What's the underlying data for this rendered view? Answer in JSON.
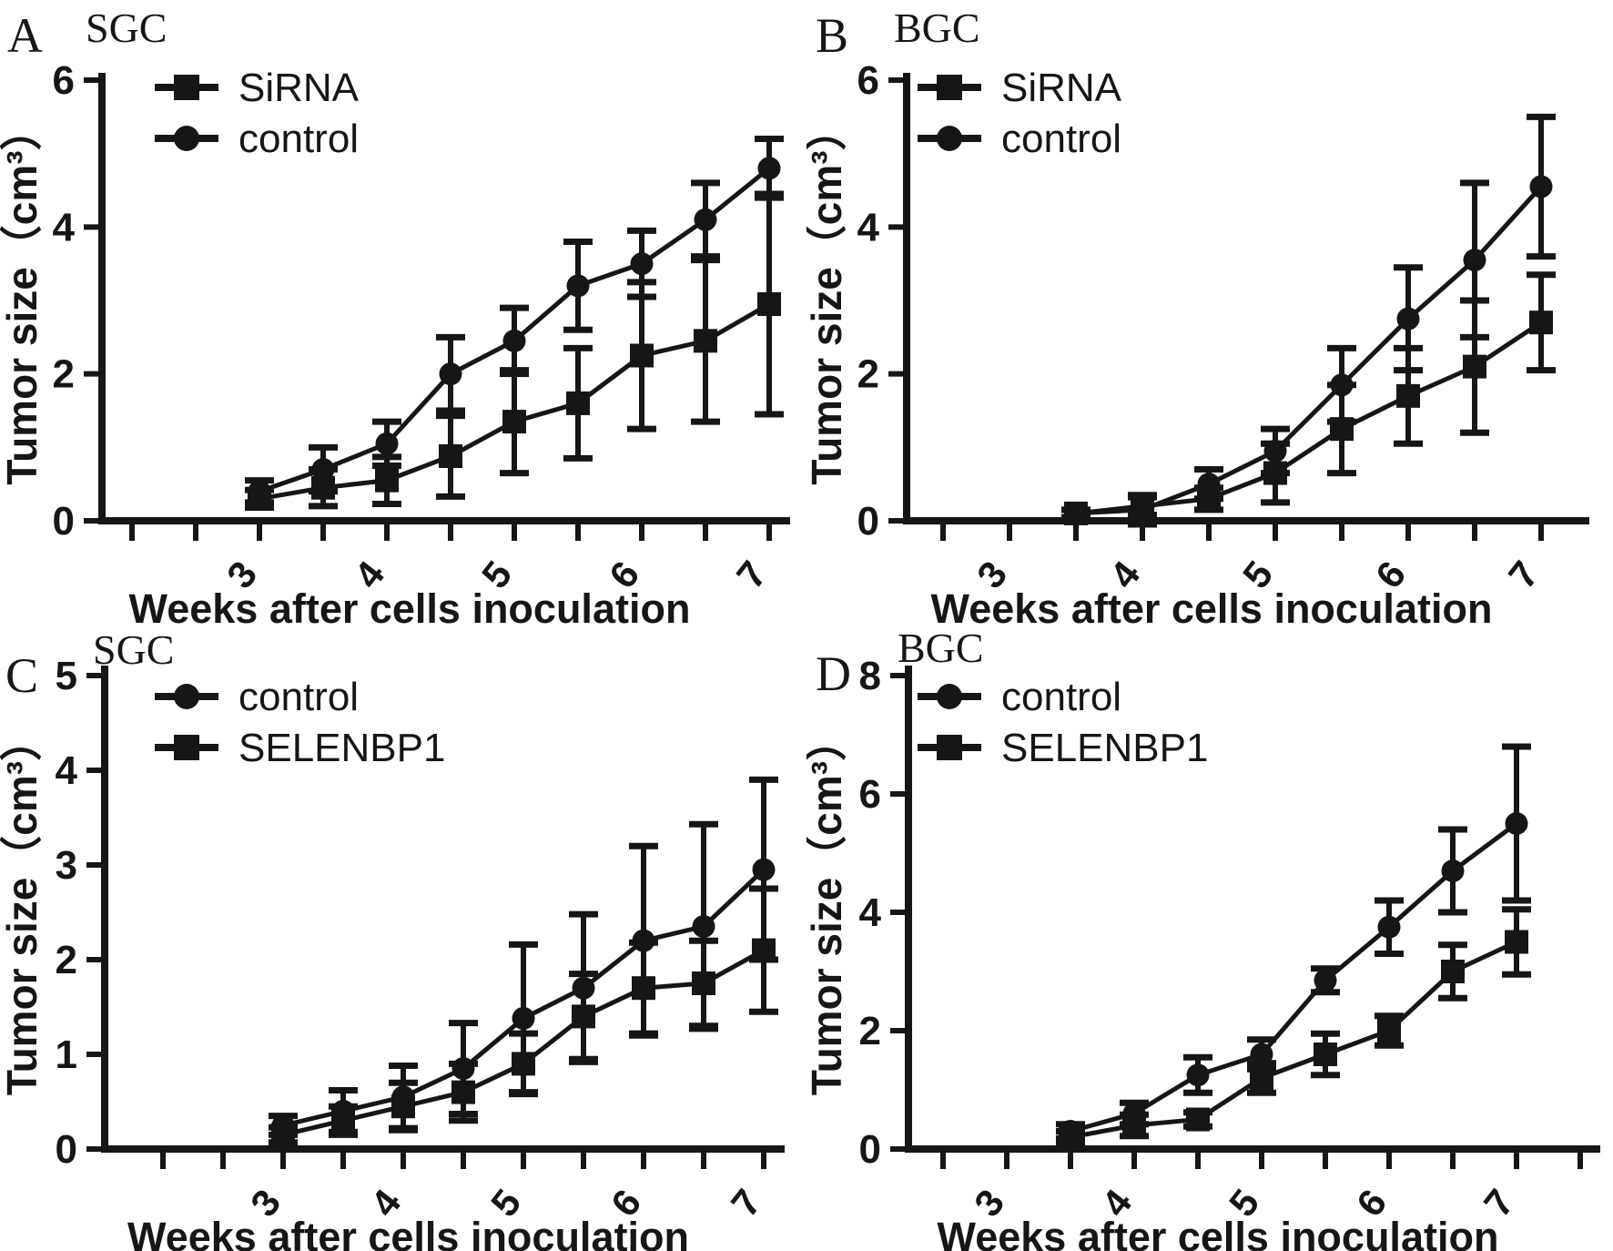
{
  "figure": {
    "background": "#ffffff",
    "ink_color": "#161616"
  },
  "chart_data": [
    {
      "panel_letter": "A",
      "title": "SGC",
      "type": "line",
      "x_label": "Weeks after cells inoculation",
      "y_label": "Tumor size（cm³）",
      "x": [
        3,
        3.5,
        4,
        4.5,
        5,
        5.5,
        6,
        6.5,
        7
      ],
      "x_axis": {
        "tick_start": 2,
        "tick_end": 7,
        "tick_step": 0.5,
        "labeled_ticks": [
          3,
          4,
          5,
          6,
          7
        ]
      },
      "y_axis": {
        "ticks": [
          0,
          2,
          4,
          6
        ],
        "min": 0,
        "max": 6
      },
      "grid": false,
      "legend_position": "top-left",
      "series": [
        {
          "name": "SiRNA",
          "marker": "square",
          "values": [
            0.3,
            0.45,
            0.55,
            0.88,
            1.35,
            1.6,
            2.25,
            2.45,
            2.95
          ],
          "errors": [
            0.12,
            0.25,
            0.32,
            0.55,
            0.7,
            0.75,
            1.0,
            1.1,
            1.5
          ]
        },
        {
          "name": "control",
          "marker": "circle",
          "values": [
            0.4,
            0.7,
            1.05,
            2.0,
            2.45,
            3.2,
            3.5,
            4.1,
            4.8
          ],
          "errors": [
            0.15,
            0.3,
            0.3,
            0.5,
            0.45,
            0.6,
            0.45,
            0.5,
            0.4
          ]
        }
      ]
    },
    {
      "panel_letter": "B",
      "title": "BGC",
      "type": "line",
      "x_label": "Weeks after cells inoculation",
      "y_label": "Tumor size（cm³）",
      "x": [
        3.5,
        4,
        4.5,
        5,
        5.5,
        6,
        6.5,
        7
      ],
      "x_axis": {
        "tick_start": 2.5,
        "tick_end": 7,
        "tick_step": 0.5,
        "labeled_ticks": [
          3,
          4,
          5,
          6,
          7
        ]
      },
      "y_axis": {
        "ticks": [
          0,
          2,
          4,
          6
        ],
        "min": 0,
        "max": 6
      },
      "grid": false,
      "legend_position": "top-left",
      "series": [
        {
          "name": "SiRNA",
          "marker": "square",
          "values": [
            0.1,
            0.2,
            0.3,
            0.65,
            1.25,
            1.7,
            2.1,
            2.7
          ],
          "errors": [
            0.05,
            0.12,
            0.15,
            0.4,
            0.6,
            0.65,
            0.9,
            0.65
          ]
        },
        {
          "name": "control",
          "marker": "circle",
          "values": [
            0.1,
            0.15,
            0.5,
            0.95,
            1.85,
            2.75,
            3.55,
            4.55
          ],
          "errors": [
            0.05,
            0.2,
            0.2,
            0.3,
            0.5,
            0.7,
            1.05,
            0.95
          ]
        }
      ]
    },
    {
      "panel_letter": "C",
      "title": "SGC",
      "type": "line",
      "x_label": "Weeks after cells inoculation",
      "y_label": "Tumor size（cm³）",
      "x": [
        3,
        3.5,
        4,
        4.5,
        5,
        5.5,
        6,
        6.5,
        7
      ],
      "x_axis": {
        "tick_start": 2,
        "tick_end": 7,
        "tick_step": 0.5,
        "labeled_ticks": [
          3,
          4,
          5,
          6,
          7
        ]
      },
      "y_axis": {
        "ticks": [
          0,
          1,
          2,
          3,
          4,
          5
        ],
        "min": 0,
        "max": 5
      },
      "grid": false,
      "legend_position": "top-left",
      "series": [
        {
          "name": "control",
          "marker": "circle",
          "values": [
            0.25,
            0.4,
            0.55,
            0.85,
            1.38,
            1.7,
            2.2,
            2.35,
            2.95
          ],
          "errors": [
            0.1,
            0.22,
            0.33,
            0.48,
            0.78,
            0.78,
            1.0,
            1.08,
            0.95
          ]
        },
        {
          "name": "SELENBP1",
          "marker": "square",
          "values": [
            0.15,
            0.3,
            0.45,
            0.6,
            0.9,
            1.4,
            1.7,
            1.75,
            2.1
          ],
          "errors": [
            0.08,
            0.15,
            0.25,
            0.3,
            0.32,
            0.45,
            0.48,
            0.45,
            0.65
          ]
        }
      ]
    },
    {
      "panel_letter": "D",
      "title": "BGC",
      "type": "line",
      "x_label": "Weeks after cells inoculation",
      "y_label": "Tumor size（cm³）",
      "x": [
        3.5,
        4,
        4.5,
        5,
        5.5,
        6,
        6.5,
        7
      ],
      "x_axis": {
        "tick_start": 2.5,
        "tick_end": 7.5,
        "tick_step": 0.5,
        "labeled_ticks": [
          3,
          4,
          5,
          6,
          7
        ]
      },
      "y_axis": {
        "ticks": [
          0,
          2,
          4,
          6,
          8
        ],
        "min": 0,
        "max": 8
      },
      "grid": false,
      "legend_position": "top-left",
      "series": [
        {
          "name": "control",
          "marker": "circle",
          "values": [
            0.3,
            0.6,
            1.25,
            1.6,
            2.85,
            3.75,
            4.7,
            5.5
          ],
          "errors": [
            0.12,
            0.18,
            0.3,
            0.25,
            0.2,
            0.45,
            0.7,
            1.3
          ]
        },
        {
          "name": "SELENBP1",
          "marker": "square",
          "values": [
            0.2,
            0.4,
            0.5,
            1.2,
            1.6,
            2.0,
            3.0,
            3.5
          ],
          "errors": [
            0.1,
            0.18,
            0.12,
            0.25,
            0.35,
            0.25,
            0.45,
            0.55
          ]
        }
      ]
    }
  ]
}
